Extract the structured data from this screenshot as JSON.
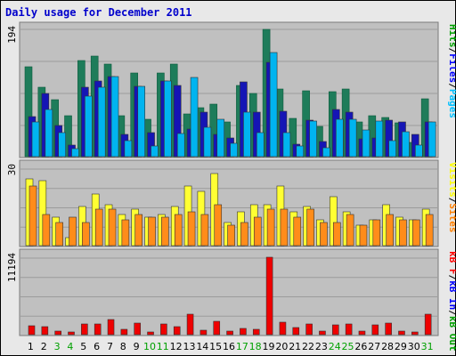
{
  "chart_data": {
    "type": "bar",
    "title": "Daily usage for December 2011",
    "categories": [
      "1",
      "2",
      "3",
      "4",
      "5",
      "6",
      "7",
      "8",
      "9",
      "10",
      "11",
      "12",
      "13",
      "14",
      "15",
      "16",
      "17",
      "18",
      "19",
      "20",
      "21",
      "22",
      "23",
      "24",
      "25",
      "26",
      "27",
      "28",
      "29",
      "30",
      "31"
    ],
    "weekend_days": [
      "3",
      "4",
      "10",
      "11",
      "17",
      "18",
      "24",
      "25",
      "31"
    ],
    "panels": [
      {
        "max_label": "194",
        "max": 194,
        "legend": [
          {
            "name": "Hits",
            "color": "#00A000"
          },
          {
            "name": "Files",
            "color": "#0000FF"
          },
          {
            "name": "Pages",
            "color": "#00C0FF"
          }
        ],
        "series": [
          {
            "name": "Hits",
            "color": "#1E7C5A",
            "values": [
              136,
              105,
              86,
              62,
              146,
              152,
              140,
              62,
              127,
              57,
              127,
              140,
              65,
              74,
              80,
              53,
              108,
              96,
              192,
              102,
              58,
              100,
              46,
              99,
              103,
              52,
              62,
              59,
              51,
              22,
              87
            ]
          },
          {
            "name": "Files",
            "color": "#1515B5",
            "values": [
              60,
              96,
              47,
              18,
              105,
              115,
              121,
              34,
              106,
              37,
              115,
              108,
              42,
              68,
              34,
              28,
              113,
              67,
              143,
              69,
              19,
              55,
              23,
              71,
              68,
              27,
              28,
              55,
              53,
              34,
              53
            ]
          },
          {
            "name": "Pages",
            "color": "#00B4F0",
            "values": [
              52,
              72,
              36,
              12,
              91,
              105,
              121,
              24,
              106,
              16,
              115,
              35,
              120,
              45,
              56,
              20,
              67,
              36,
              158,
              37,
              16,
              54,
              14,
              56,
              56,
              41,
              54,
              24,
              38,
              18,
              53
            ]
          }
        ]
      },
      {
        "max_label": "30",
        "max": 30,
        "legend": [
          {
            "name": "Visits",
            "color": "#FFFF00"
          },
          {
            "name": "Sites",
            "color": "#FF8000"
          }
        ],
        "series": [
          {
            "name": "Visits",
            "color": "#FFFF33",
            "values": [
              26,
              25,
              11,
              3,
              15,
              20,
              16,
              12,
              14,
              11,
              12,
              15,
              23,
              21,
              28,
              9,
              13,
              16,
              16,
              23,
              13,
              15,
              10,
              19,
              13,
              8,
              10,
              16,
              11,
              10,
              14
            ]
          },
          {
            "name": "Sites",
            "color": "#FF8C1A",
            "values": [
              23,
              12,
              9,
              11,
              9,
              14,
              14,
              10,
              12,
              11,
              11,
              12,
              13,
              12,
              16,
              8,
              9,
              11,
              14,
              14,
              11,
              14,
              9,
              9,
              12,
              8,
              10,
              12,
              10,
              10,
              12
            ]
          }
        ]
      },
      {
        "max_label": "11194",
        "max": 11194,
        "legend": [
          {
            "name": "kB F",
            "color": "#FF0000"
          },
          {
            "name": "kB In",
            "color": "#0000FF"
          },
          {
            "name": "kB Out",
            "color": "#00A000"
          }
        ],
        "series": [
          {
            "name": "kB F",
            "color": "#EE0000",
            "values": [
              1300,
              1100,
              500,
              330,
              1600,
              1550,
              2220,
              800,
              1650,
              330,
              1600,
              1100,
              2950,
              600,
              1900,
              500,
              900,
              800,
              11194,
              1850,
              1000,
              1550,
              550,
              1400,
              1600,
              500,
              1400,
              1650,
              500,
              450,
              3000
            ]
          }
        ]
      }
    ]
  }
}
